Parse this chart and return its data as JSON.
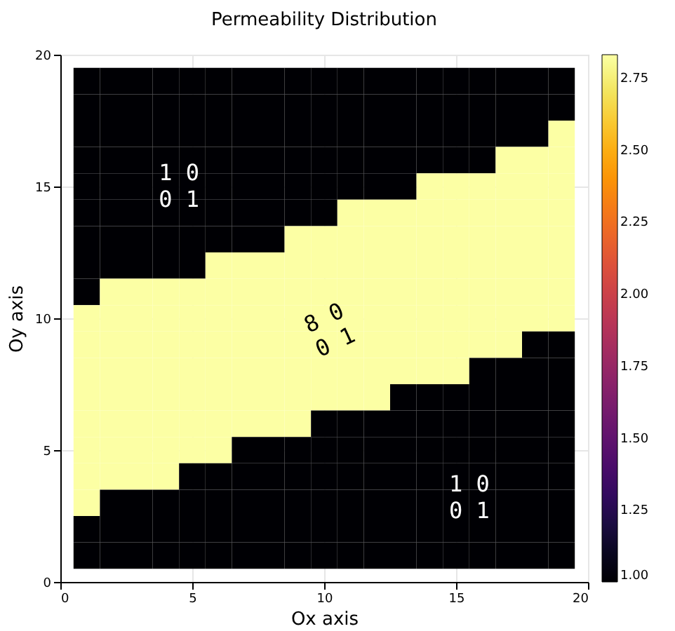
{
  "chart_data": {
    "type": "heatmap",
    "title": "Permeability Distribution",
    "xlabel": "Ox axis",
    "ylabel": "Oy axis",
    "x": [
      1,
      2,
      3,
      4,
      5,
      6,
      7,
      8,
      9,
      10,
      11,
      12,
      13,
      14,
      15,
      16,
      17,
      18,
      19
    ],
    "y": [
      19,
      18,
      17,
      16,
      15,
      14,
      13,
      12,
      11,
      10,
      9,
      8,
      7,
      6,
      5,
      4,
      3,
      2,
      1
    ],
    "cells": [
      [
        1,
        1,
        1,
        1,
        1,
        1,
        1,
        1,
        1,
        1,
        1,
        1,
        1,
        1,
        1,
        1,
        1,
        1,
        1
      ],
      [
        1,
        1,
        1,
        1,
        1,
        1,
        1,
        1,
        1,
        1,
        1,
        1,
        1,
        1,
        1,
        1,
        1,
        1,
        1
      ],
      [
        1,
        1,
        1,
        1,
        1,
        1,
        1,
        1,
        1,
        1,
        1,
        1,
        1,
        1,
        1,
        1,
        1,
        1,
        2.83
      ],
      [
        1,
        1,
        1,
        1,
        1,
        1,
        1,
        1,
        1,
        1,
        1,
        1,
        1,
        1,
        1,
        1,
        2.83,
        2.83,
        2.83
      ],
      [
        1,
        1,
        1,
        1,
        1,
        1,
        1,
        1,
        1,
        1,
        1,
        1,
        1,
        2.83,
        2.83,
        2.83,
        2.83,
        2.83,
        2.83
      ],
      [
        1,
        1,
        1,
        1,
        1,
        1,
        1,
        1,
        1,
        1,
        2.83,
        2.83,
        2.83,
        2.83,
        2.83,
        2.83,
        2.83,
        2.83,
        2.83
      ],
      [
        1,
        1,
        1,
        1,
        1,
        1,
        1,
        1,
        2.83,
        2.83,
        2.83,
        2.83,
        2.83,
        2.83,
        2.83,
        2.83,
        2.83,
        2.83,
        2.83
      ],
      [
        1,
        1,
        1,
        1,
        1,
        2.83,
        2.83,
        2.83,
        2.83,
        2.83,
        2.83,
        2.83,
        2.83,
        2.83,
        2.83,
        2.83,
        2.83,
        2.83,
        2.83
      ],
      [
        1,
        2.83,
        2.83,
        2.83,
        2.83,
        2.83,
        2.83,
        2.83,
        2.83,
        2.83,
        2.83,
        2.83,
        2.83,
        2.83,
        2.83,
        2.83,
        2.83,
        2.83,
        2.83
      ],
      [
        2.83,
        2.83,
        2.83,
        2.83,
        2.83,
        2.83,
        2.83,
        2.83,
        2.83,
        2.83,
        2.83,
        2.83,
        2.83,
        2.83,
        2.83,
        2.83,
        2.83,
        2.83,
        2.83
      ],
      [
        2.83,
        2.83,
        2.83,
        2.83,
        2.83,
        2.83,
        2.83,
        2.83,
        2.83,
        2.83,
        2.83,
        2.83,
        2.83,
        2.83,
        2.83,
        2.83,
        2.83,
        1,
        1
      ],
      [
        2.83,
        2.83,
        2.83,
        2.83,
        2.83,
        2.83,
        2.83,
        2.83,
        2.83,
        2.83,
        2.83,
        2.83,
        2.83,
        2.83,
        2.83,
        1,
        1,
        1,
        1
      ],
      [
        2.83,
        2.83,
        2.83,
        2.83,
        2.83,
        2.83,
        2.83,
        2.83,
        2.83,
        2.83,
        2.83,
        2.83,
        1,
        1,
        1,
        1,
        1,
        1,
        1
      ],
      [
        2.83,
        2.83,
        2.83,
        2.83,
        2.83,
        2.83,
        2.83,
        2.83,
        2.83,
        1,
        1,
        1,
        1,
        1,
        1,
        1,
        1,
        1,
        1
      ],
      [
        2.83,
        2.83,
        2.83,
        2.83,
        2.83,
        2.83,
        1,
        1,
        1,
        1,
        1,
        1,
        1,
        1,
        1,
        1,
        1,
        1,
        1
      ],
      [
        2.83,
        2.83,
        2.83,
        2.83,
        1,
        1,
        1,
        1,
        1,
        1,
        1,
        1,
        1,
        1,
        1,
        1,
        1,
        1,
        1
      ],
      [
        2.83,
        1,
        1,
        1,
        1,
        1,
        1,
        1,
        1,
        1,
        1,
        1,
        1,
        1,
        1,
        1,
        1,
        1,
        1
      ],
      [
        1,
        1,
        1,
        1,
        1,
        1,
        1,
        1,
        1,
        1,
        1,
        1,
        1,
        1,
        1,
        1,
        1,
        1,
        1
      ],
      [
        1,
        1,
        1,
        1,
        1,
        1,
        1,
        1,
        1,
        1,
        1,
        1,
        1,
        1,
        1,
        1,
        1,
        1,
        1
      ]
    ],
    "xlim": [
      0,
      20
    ],
    "xticks": [
      0,
      5,
      10,
      15,
      20
    ],
    "ylim": [
      0,
      20
    ],
    "yticks": [
      0,
      5,
      10,
      15,
      20
    ],
    "clim": [
      1,
      2.83
    ],
    "cticks": [
      {
        "value": 1,
        "label": "1.00"
      },
      1.25,
      {
        "value": 1.5,
        "label": "1.50"
      },
      1.75,
      {
        "value": 2,
        "label": "2.00"
      },
      2.25,
      {
        "value": 2.5,
        "label": "2.50"
      },
      2.75
    ],
    "grid": true,
    "annotations": [
      "1 0\n0 1",
      "8 0\n0 1",
      "1 0\n0 1"
    ]
  }
}
